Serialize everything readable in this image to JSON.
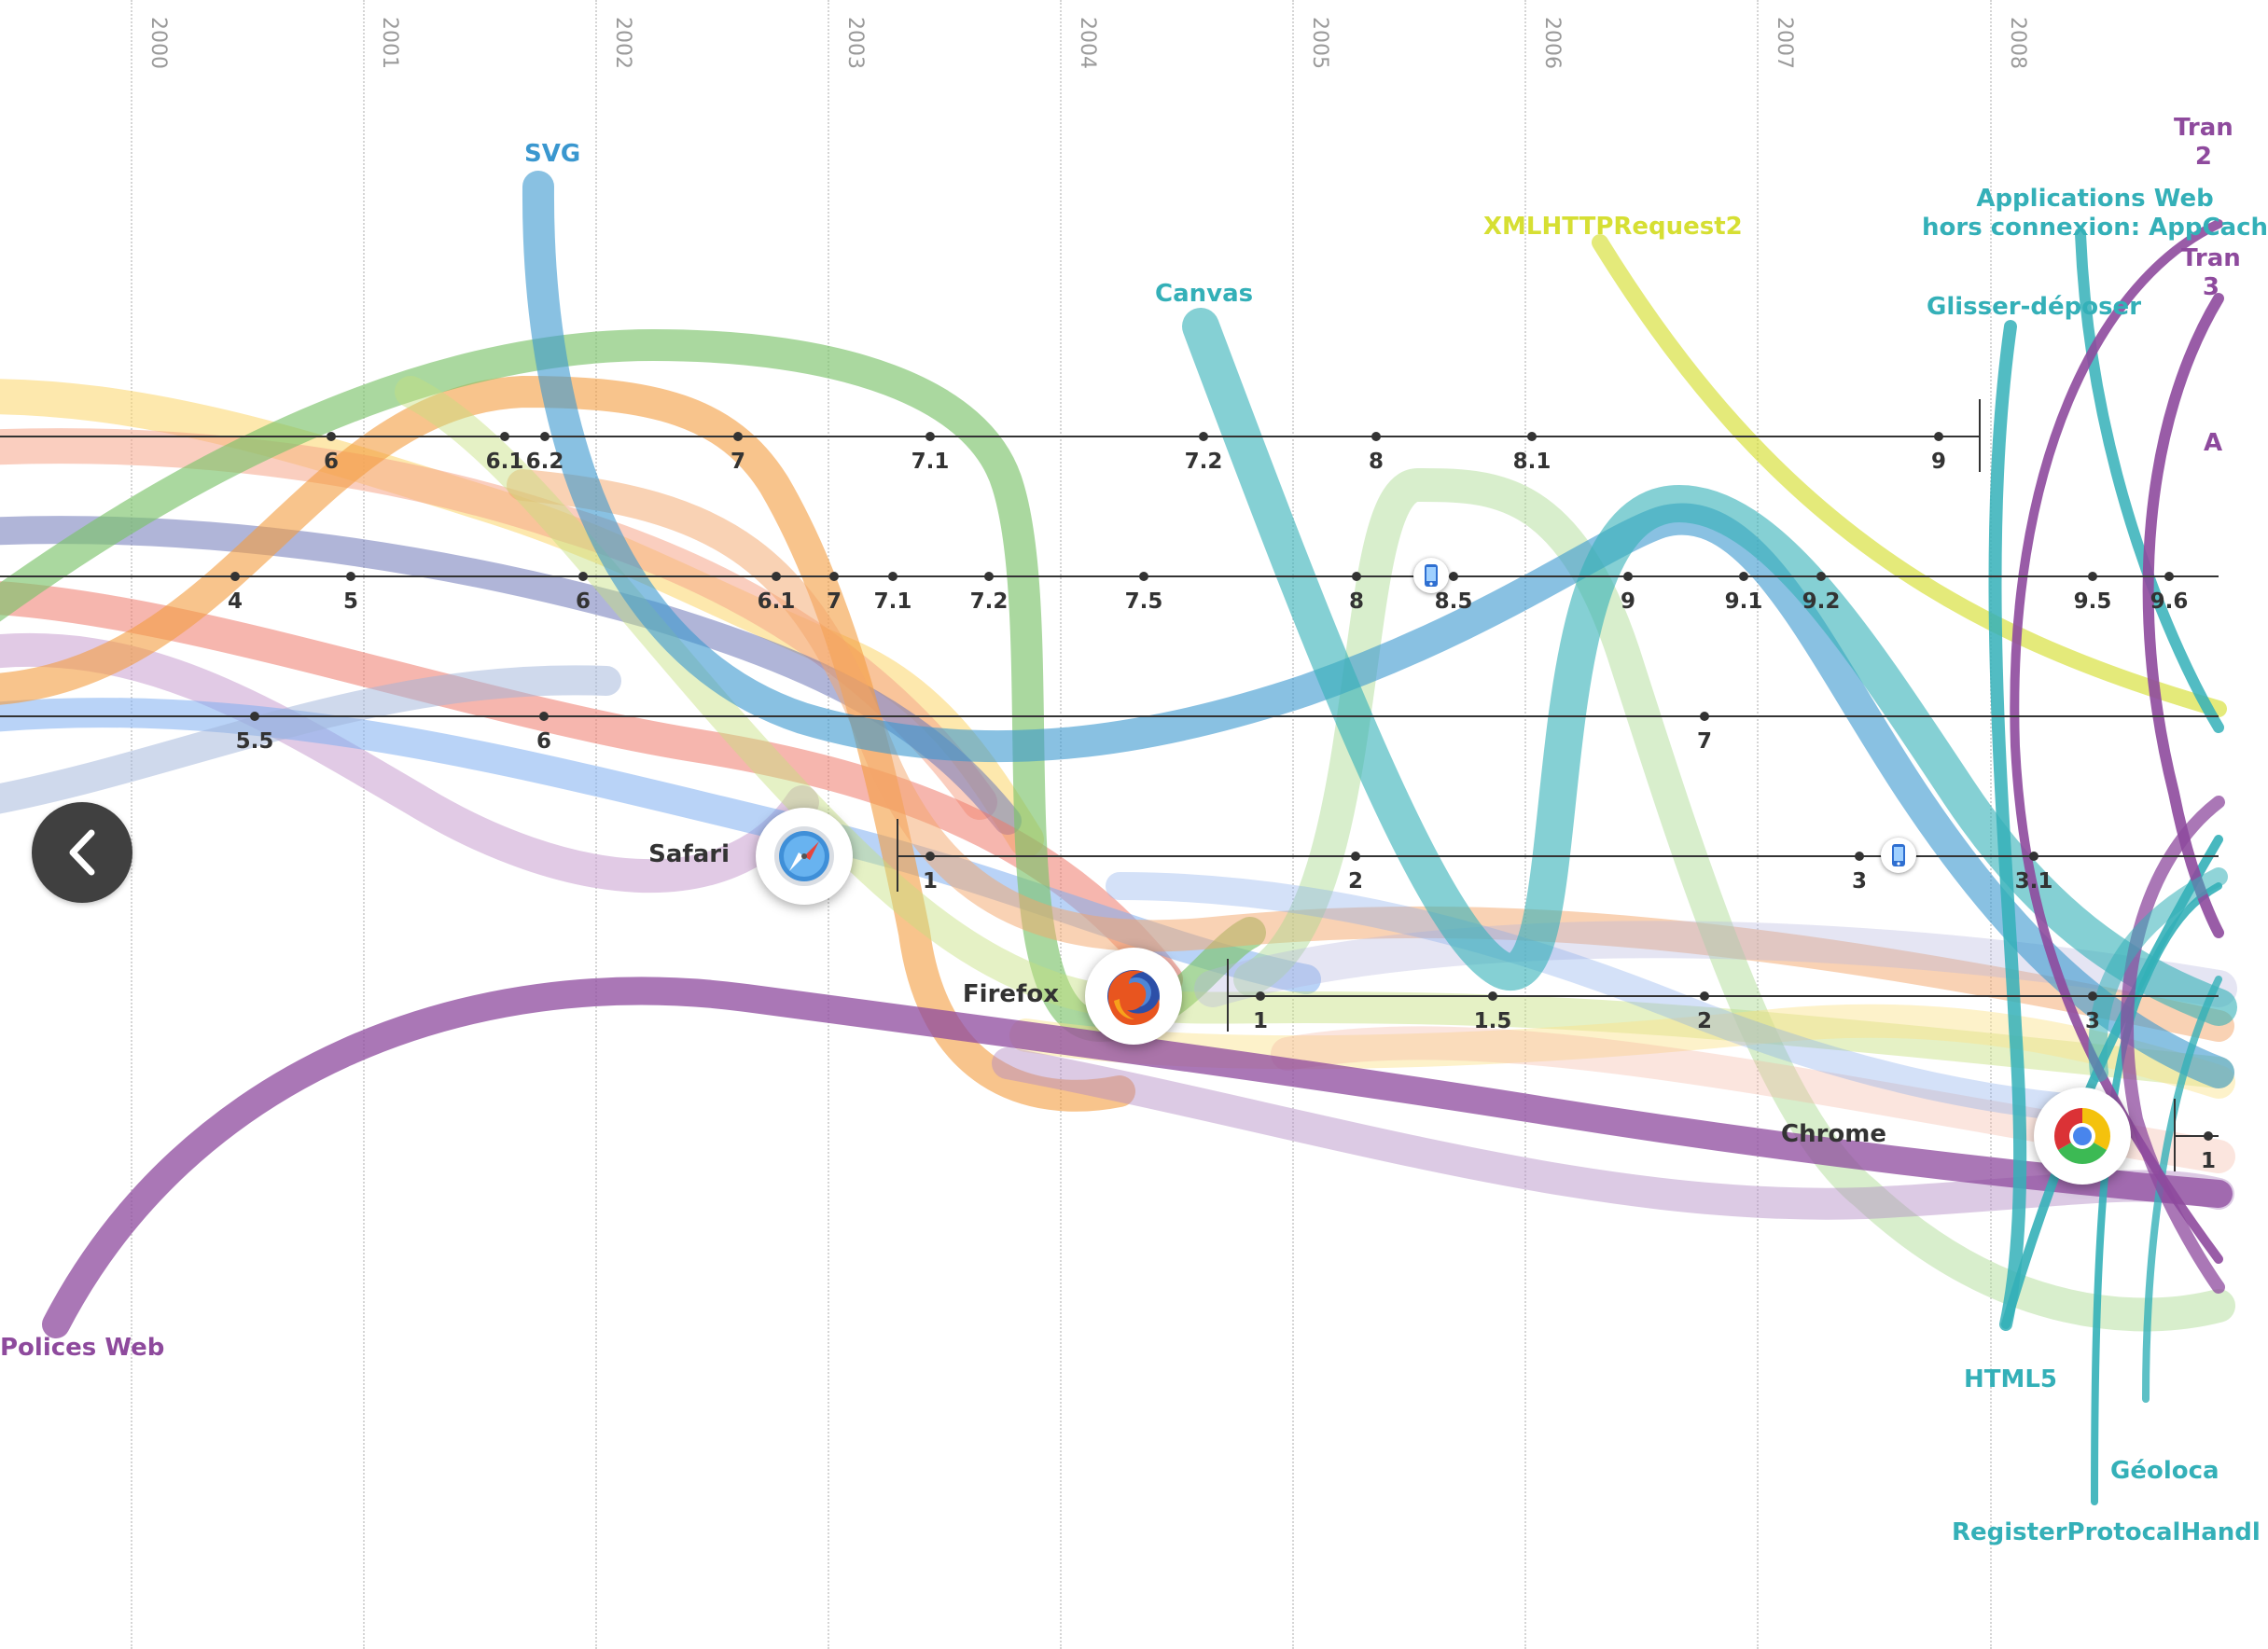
{
  "years": [
    "2000",
    "2001",
    "2002",
    "2003",
    "2004",
    "2005",
    "2006",
    "2007",
    "2008"
  ],
  "timelines": [
    {
      "id": "tl-1",
      "versions": [
        "6",
        "6.1",
        "6.2",
        "7",
        "7.1",
        "7.2",
        "8",
        "8.1",
        "9"
      ]
    },
    {
      "id": "tl-2",
      "versions": [
        "4",
        "5",
        "6",
        "6.1",
        "7",
        "7.1",
        "7.2",
        "7.5",
        "8",
        "8.5",
        "9",
        "9.1",
        "9.2",
        "9.5",
        "9.6"
      ]
    },
    {
      "id": "tl-3",
      "versions": [
        "5.5",
        "6",
        "7"
      ]
    },
    {
      "id": "safari",
      "versions": [
        "1",
        "2",
        "3",
        "3.1"
      ]
    },
    {
      "id": "firefox",
      "versions": [
        "1",
        "1.5",
        "2",
        "3"
      ]
    },
    {
      "id": "chrome",
      "versions": [
        "1"
      ]
    }
  ],
  "browsers": {
    "safari": {
      "name": "Safari",
      "icon": "safari-icon"
    },
    "firefox": {
      "name": "Firefox",
      "icon": "firefox-icon"
    },
    "chrome": {
      "name": "Chrome",
      "icon": "chrome-icon"
    }
  },
  "mobile_icon": "mobile-phone-icon",
  "features": [
    {
      "id": "svg",
      "label": "SVG",
      "color": "#3a97cf"
    },
    {
      "id": "canvas",
      "label": "Canvas",
      "color": "#34b0b8"
    },
    {
      "id": "xhr2",
      "label": "XMLHTTPRequest2",
      "color": "#d6df33"
    },
    {
      "id": "appcache",
      "label": "Applications Web\nhors connexion: AppCach",
      "color": "#34b0b8"
    },
    {
      "id": "dnd",
      "label": "Glisser-déposer",
      "color": "#34b0b8"
    },
    {
      "id": "webfonts",
      "label": "Polices Web",
      "color": "#8e4a9d"
    },
    {
      "id": "html5",
      "label": "HTML5",
      "color": "#34b0b8"
    },
    {
      "id": "geo",
      "label": "Géoloca",
      "color": "#34b0b8"
    },
    {
      "id": "rph",
      "label": "RegisterProtocalHandl",
      "color": "#34b0b8"
    },
    {
      "id": "tran1",
      "label": "Tran\n2",
      "color": "#8e4a9d"
    },
    {
      "id": "tran2",
      "label": "Tran\n3",
      "color": "#8e4a9d"
    },
    {
      "id": "a-cut",
      "label": "A",
      "color": "#8e4a9d"
    }
  ],
  "nav": {
    "prev_icon": "chevron-left-icon"
  }
}
